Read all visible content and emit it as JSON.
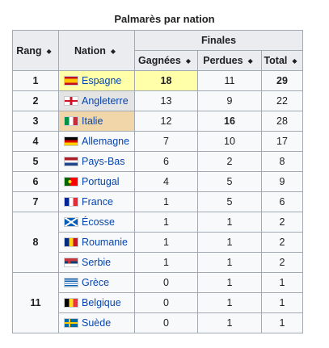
{
  "caption": "Palmarès par nation",
  "headers": {
    "rang": "Rang",
    "nation": "Nation",
    "finales": "Finales",
    "gagnees": "Gagnées",
    "perdues": "Perdues",
    "total": "Total",
    "sort_icon": "◆"
  },
  "rows": [
    {
      "rank": "1",
      "nation": "Espagne",
      "won": "18",
      "lost": "11",
      "total": "29"
    },
    {
      "rank": "2",
      "nation": "Angleterre",
      "won": "13",
      "lost": "9",
      "total": "22"
    },
    {
      "rank": "3",
      "nation": "Italie",
      "won": "12",
      "lost": "16",
      "total": "28"
    },
    {
      "rank": "4",
      "nation": "Allemagne",
      "won": "7",
      "lost": "10",
      "total": "17"
    },
    {
      "rank": "5",
      "nation": "Pays-Bas",
      "won": "6",
      "lost": "2",
      "total": "8"
    },
    {
      "rank": "6",
      "nation": "Portugal",
      "won": "4",
      "lost": "5",
      "total": "9"
    },
    {
      "rank": "7",
      "nation": "France",
      "won": "1",
      "lost": "5",
      "total": "6"
    },
    {
      "rank": "8",
      "nation": "Écosse",
      "won": "1",
      "lost": "1",
      "total": "2"
    },
    {
      "nation": "Roumanie",
      "won": "1",
      "lost": "1",
      "total": "2"
    },
    {
      "nation": "Serbie",
      "won": "1",
      "lost": "1",
      "total": "2"
    },
    {
      "rank": "11",
      "nation": "Grèce",
      "won": "0",
      "lost": "1",
      "total": "1"
    },
    {
      "nation": "Belgique",
      "won": "0",
      "lost": "1",
      "total": "1"
    },
    {
      "nation": "Suède",
      "won": "0",
      "lost": "1",
      "total": "1"
    }
  ]
}
